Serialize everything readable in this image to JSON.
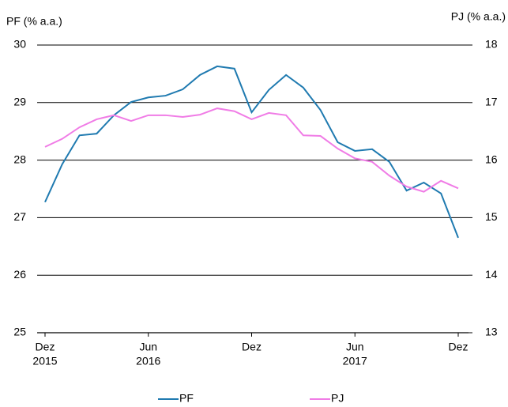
{
  "chart_data": {
    "type": "line",
    "y_label": "PF (% a.a.)",
    "y2_label": "PJ (% a.a.)",
    "categories": [
      "Dez",
      null,
      null,
      null,
      null,
      null,
      "Jun",
      null,
      null,
      null,
      null,
      null,
      "Dez",
      null,
      null,
      null,
      null,
      null,
      "Jun",
      null,
      null,
      null,
      null,
      null,
      "Dez"
    ],
    "year_labels": [
      "2015",
      null,
      null,
      null,
      null,
      null,
      "2016",
      null,
      null,
      null,
      null,
      null,
      null,
      null,
      null,
      null,
      null,
      null,
      "2017",
      null,
      null,
      null,
      null,
      null,
      null
    ],
    "series": [
      {
        "name": "PF",
        "color": "#1f7ab0",
        "axis": "y",
        "values": [
          27.27,
          27.93,
          28.43,
          28.46,
          28.78,
          29.01,
          29.09,
          29.12,
          29.23,
          29.48,
          29.63,
          29.59,
          28.83,
          29.22,
          29.48,
          29.26,
          28.87,
          28.31,
          28.16,
          28.19,
          27.97,
          27.47,
          27.61,
          27.42,
          26.65
        ]
      },
      {
        "name": "PJ",
        "color": "#f07ce6",
        "axis": "y2",
        "values": [
          16.23,
          16.37,
          16.57,
          16.71,
          16.78,
          16.68,
          16.78,
          16.78,
          16.75,
          16.79,
          16.9,
          16.85,
          16.71,
          16.82,
          16.78,
          16.43,
          16.42,
          16.2,
          16.03,
          15.97,
          15.73,
          15.54,
          15.45,
          15.64,
          15.51
        ]
      }
    ],
    "ylim": [
      25,
      30
    ],
    "yticks": [
      25,
      26,
      27,
      28,
      29,
      30
    ],
    "y2lim": [
      13,
      18
    ],
    "y2ticks": [
      13,
      14,
      15,
      16,
      17,
      18
    ],
    "grid": true
  }
}
